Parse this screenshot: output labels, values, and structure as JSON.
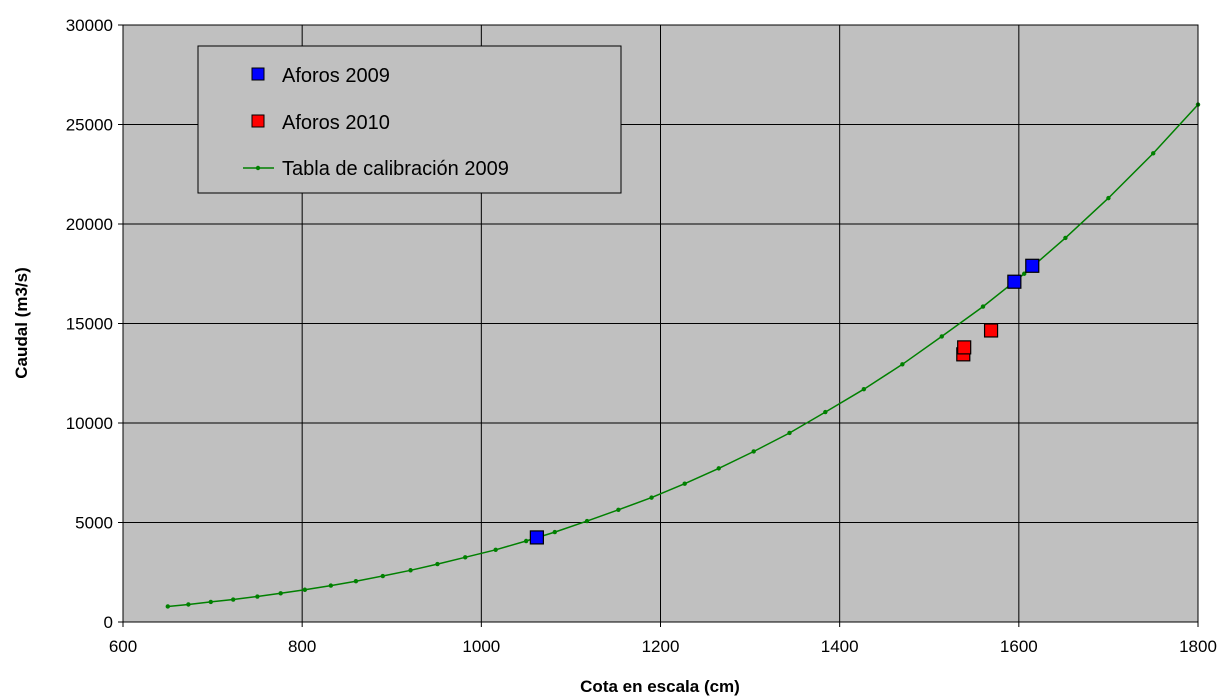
{
  "chart_data": {
    "type": "scatter",
    "title": "",
    "xlabel": "Cota en escala (cm)",
    "ylabel": "Caudal (m3/s)",
    "xlim": [
      600,
      1800
    ],
    "ylim": [
      0,
      30000
    ],
    "x_ticks": [
      600,
      800,
      1000,
      1200,
      1400,
      1600,
      1800
    ],
    "y_ticks": [
      0,
      5000,
      10000,
      15000,
      20000,
      25000,
      30000
    ],
    "grid": true,
    "plot_background": "#c0c0c0",
    "legend_position": "top-left",
    "series": [
      {
        "name": "Aforos 2009",
        "kind": "marker",
        "marker": "square",
        "color": "#0000ff",
        "points": [
          [
            1062,
            4250
          ],
          [
            1595,
            17100
          ],
          [
            1615,
            17900
          ]
        ]
      },
      {
        "name": "Aforos 2010",
        "kind": "marker",
        "marker": "square",
        "color": "#ff0000",
        "points": [
          [
            1538,
            13450
          ],
          [
            1539,
            13800
          ],
          [
            1569,
            14650
          ]
        ]
      },
      {
        "name": "Tabla de calibración 2009",
        "kind": "line",
        "marker": "dot",
        "color": "#008000",
        "points": [
          [
            650,
            780
          ],
          [
            673,
            880
          ],
          [
            698,
            1010
          ],
          [
            723,
            1130
          ],
          [
            750,
            1280
          ],
          [
            776,
            1440
          ],
          [
            803,
            1620
          ],
          [
            832,
            1830
          ],
          [
            860,
            2050
          ],
          [
            890,
            2310
          ],
          [
            921,
            2600
          ],
          [
            951,
            2910
          ],
          [
            982,
            3250
          ],
          [
            1016,
            3630
          ],
          [
            1050,
            4070
          ],
          [
            1082,
            4520
          ],
          [
            1118,
            5070
          ],
          [
            1153,
            5640
          ],
          [
            1190,
            6250
          ],
          [
            1227,
            6950
          ],
          [
            1265,
            7720
          ],
          [
            1304,
            8570
          ],
          [
            1344,
            9500
          ],
          [
            1384,
            10550
          ],
          [
            1427,
            11700
          ],
          [
            1470,
            12950
          ],
          [
            1514,
            14350
          ],
          [
            1560,
            15850
          ],
          [
            1606,
            17500
          ],
          [
            1652,
            19300
          ],
          [
            1700,
            21300
          ],
          [
            1750,
            23550
          ],
          [
            1800,
            26000
          ]
        ]
      }
    ]
  }
}
